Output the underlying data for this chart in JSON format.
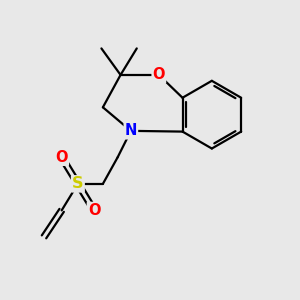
{
  "background_color": "#e8e8e8",
  "bond_color": "#000000",
  "atom_colors": {
    "O": "#ff0000",
    "N": "#0000ff",
    "S": "#cccc00",
    "C": "#000000"
  },
  "figsize": [
    3.0,
    3.0
  ],
  "dpi": 100,
  "lw": 1.6,
  "fs": 10.5,
  "sulfonyl_O_color": "#ff0000"
}
